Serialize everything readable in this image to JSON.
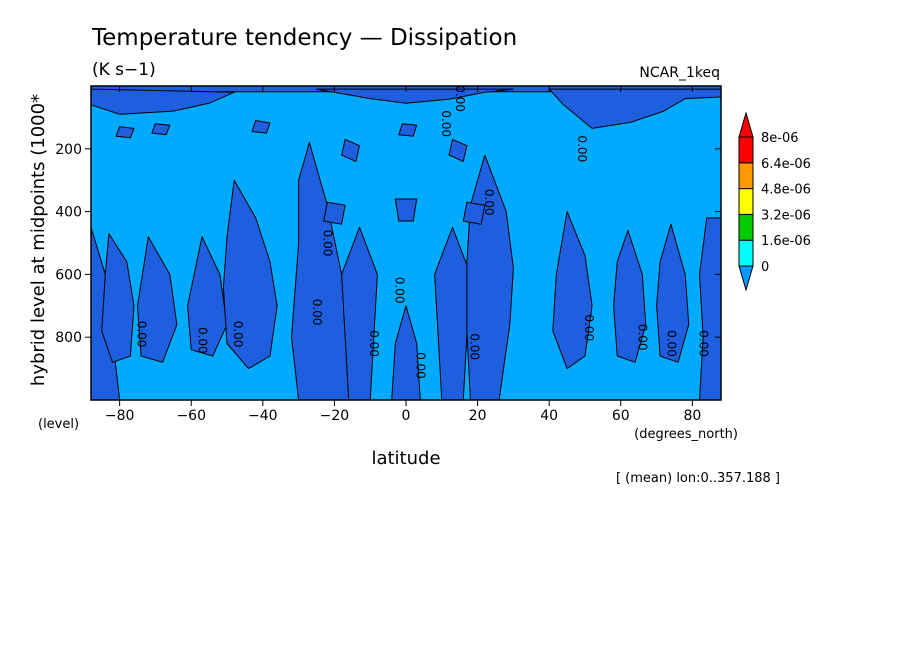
{
  "chart_data": {
    "type": "contour",
    "title": "Temperature tendency — Dissipation",
    "units": "(K s−1)",
    "dataset": "NCAR_1keq",
    "xlabel": "latitude",
    "x_units": "(degrees_north)",
    "ylabel": "hybrid level at midpoints (1000*",
    "y_units": "(level)",
    "footnote": "[ (mean) lon:0..357.188 ]",
    "xlim": [
      -88,
      88
    ],
    "ylim": [
      1000,
      0
    ],
    "x_ticks": [
      -80,
      -60,
      -40,
      -20,
      0,
      20,
      40,
      60,
      80
    ],
    "x_tick_labels": [
      "−80",
      "−60",
      "−40",
      "−20",
      "0",
      "20",
      "40",
      "60",
      "80"
    ],
    "y_ticks": [
      200,
      400,
      600,
      800
    ],
    "y_tick_labels": [
      "200",
      "400",
      "600",
      "800"
    ],
    "colorbar": {
      "levels": [
        "0",
        "1.6e-06",
        "3.2e-06",
        "4.8e-06",
        "6.4e-06",
        "8e-06"
      ],
      "colors": [
        "#0099ff",
        "#00ffff",
        "#00cc00",
        "#ffff00",
        "#ff9900",
        "#ff0000"
      ],
      "below_color": "#1e5fe0"
    },
    "contour_label": "0.00",
    "fill_colors": {
      "positive": "#00aaff",
      "negative": "#1e5fe0"
    },
    "negative_regions": [
      {
        "name": "top-band",
        "pts": [
          [
            -88,
            0
          ],
          [
            88,
            0
          ],
          [
            88,
            18
          ],
          [
            -88,
            18
          ]
        ]
      },
      {
        "name": "top-center",
        "pts": [
          [
            -25,
            10
          ],
          [
            -10,
            40
          ],
          [
            0,
            55
          ],
          [
            12,
            42
          ],
          [
            22,
            20
          ],
          [
            30,
            10
          ]
        ]
      },
      {
        "name": "top-left",
        "pts": [
          [
            -88,
            10
          ],
          [
            -88,
            60
          ],
          [
            -80,
            90
          ],
          [
            -65,
            80
          ],
          [
            -55,
            55
          ],
          [
            -48,
            20
          ]
        ]
      },
      {
        "name": "top-right",
        "pts": [
          [
            40,
            10
          ],
          [
            44,
            60
          ],
          [
            52,
            135
          ],
          [
            63,
            115
          ],
          [
            72,
            80
          ],
          [
            78,
            40
          ],
          [
            88,
            35
          ],
          [
            88,
            10
          ]
        ]
      },
      {
        "name": "left-arm",
        "pts": [
          [
            -88,
            450
          ],
          [
            -88,
            1000
          ],
          [
            -80,
            1000
          ],
          [
            -82,
            800
          ],
          [
            -84,
            600
          ]
        ]
      },
      {
        "name": "col-m82",
        "pts": [
          [
            -83,
            470
          ],
          [
            -78,
            560
          ],
          [
            -76,
            700
          ],
          [
            -77,
            860
          ],
          [
            -82,
            880
          ],
          [
            -85,
            780
          ],
          [
            -84,
            600
          ]
        ]
      },
      {
        "name": "col-m71",
        "pts": [
          [
            -72,
            480
          ],
          [
            -66,
            600
          ],
          [
            -64,
            760
          ],
          [
            -68,
            880
          ],
          [
            -74,
            860
          ],
          [
            -75,
            700
          ]
        ]
      },
      {
        "name": "col-m55",
        "pts": [
          [
            -57,
            480
          ],
          [
            -52,
            600
          ],
          [
            -50,
            760
          ],
          [
            -54,
            860
          ],
          [
            -60,
            840
          ],
          [
            -61,
            700
          ]
        ]
      },
      {
        "name": "col-m46",
        "pts": [
          [
            -48,
            300
          ],
          [
            -42,
            420
          ],
          [
            -38,
            560
          ],
          [
            -36,
            700
          ],
          [
            -38,
            860
          ],
          [
            -44,
            900
          ],
          [
            -50,
            820
          ],
          [
            -51,
            640
          ],
          [
            -50,
            480
          ]
        ]
      },
      {
        "name": "col-m30",
        "pts": [
          [
            -27,
            180
          ],
          [
            -22,
            380
          ],
          [
            -18,
            600
          ],
          [
            -16,
            820
          ],
          [
            -14,
            1000
          ],
          [
            -30,
            1000
          ],
          [
            -32,
            800
          ],
          [
            -30,
            500
          ],
          [
            -30,
            300
          ]
        ]
      },
      {
        "name": "center-tree",
        "pts": [
          [
            -18,
            600
          ],
          [
            -13,
            450
          ],
          [
            -8,
            600
          ],
          [
            -10,
            1000
          ],
          [
            -4,
            1000
          ],
          [
            -3,
            820
          ],
          [
            0,
            700
          ],
          [
            3,
            820
          ],
          [
            4,
            1000
          ],
          [
            10,
            1000
          ],
          [
            8,
            600
          ],
          [
            13,
            450
          ],
          [
            18,
            600
          ],
          [
            16,
            1000
          ],
          [
            -16,
            1000
          ]
        ]
      },
      {
        "name": "col-p24",
        "pts": [
          [
            22,
            220
          ],
          [
            28,
            400
          ],
          [
            30,
            580
          ],
          [
            29,
            760
          ],
          [
            26,
            1000
          ],
          [
            18,
            1000
          ],
          [
            17,
            780
          ],
          [
            17,
            560
          ],
          [
            18,
            380
          ]
        ]
      },
      {
        "name": "col-p45",
        "pts": [
          [
            45,
            400
          ],
          [
            50,
            540
          ],
          [
            52,
            700
          ],
          [
            50,
            860
          ],
          [
            45,
            900
          ],
          [
            41,
            780
          ],
          [
            42,
            600
          ]
        ]
      },
      {
        "name": "col-p62",
        "pts": [
          [
            62,
            460
          ],
          [
            66,
            600
          ],
          [
            67,
            760
          ],
          [
            64,
            880
          ],
          [
            59,
            860
          ],
          [
            58,
            700
          ],
          [
            59,
            560
          ]
        ]
      },
      {
        "name": "col-p74",
        "pts": [
          [
            74,
            440
          ],
          [
            78,
            600
          ],
          [
            79,
            760
          ],
          [
            76,
            880
          ],
          [
            71,
            860
          ],
          [
            70,
            700
          ],
          [
            71,
            560
          ]
        ]
      },
      {
        "name": "right-arm",
        "pts": [
          [
            84,
            420
          ],
          [
            88,
            420
          ],
          [
            88,
            1000
          ],
          [
            82,
            1000
          ],
          [
            83,
            800
          ],
          [
            82,
            600
          ]
        ]
      },
      {
        "name": "blob-a",
        "pts": [
          [
            -3,
            360
          ],
          [
            3,
            360
          ],
          [
            2,
            430
          ],
          [
            -2,
            430
          ]
        ]
      },
      {
        "name": "blob-b",
        "pts": [
          [
            -22,
            370
          ],
          [
            -17,
            380
          ],
          [
            -18,
            440
          ],
          [
            -23,
            430
          ]
        ]
      },
      {
        "name": "blob-c",
        "pts": [
          [
            17,
            370
          ],
          [
            22,
            380
          ],
          [
            21,
            440
          ],
          [
            16,
            430
          ]
        ]
      },
      {
        "name": "blob-d",
        "pts": [
          [
            -17,
            170
          ],
          [
            -13,
            190
          ],
          [
            -14,
            240
          ],
          [
            -18,
            220
          ]
        ]
      },
      {
        "name": "blob-e",
        "pts": [
          [
            13,
            170
          ],
          [
            17,
            190
          ],
          [
            16,
            240
          ],
          [
            12,
            220
          ]
        ]
      },
      {
        "name": "blob-f",
        "pts": [
          [
            -1,
            120
          ],
          [
            3,
            125
          ],
          [
            2,
            160
          ],
          [
            -2,
            155
          ]
        ]
      },
      {
        "name": "blob-g",
        "pts": [
          [
            -70,
            120
          ],
          [
            -66,
            125
          ],
          [
            -67,
            155
          ],
          [
            -71,
            150
          ]
        ]
      },
      {
        "name": "blob-h",
        "pts": [
          [
            -42,
            110
          ],
          [
            -38,
            118
          ],
          [
            -39,
            150
          ],
          [
            -43,
            145
          ]
        ]
      },
      {
        "name": "blob-i",
        "pts": [
          [
            -80,
            130
          ],
          [
            -76,
            135
          ],
          [
            -77,
            165
          ],
          [
            -81,
            160
          ]
        ]
      }
    ],
    "contour_label_positions": [
      [
        -75,
        790
      ],
      [
        -58,
        810
      ],
      [
        -48,
        790
      ],
      [
        -26,
        720
      ],
      [
        -23,
        500
      ],
      [
        -10,
        820
      ],
      [
        -3,
        650
      ],
      [
        3,
        890
      ],
      [
        18,
        830
      ],
      [
        22,
        370
      ],
      [
        10,
        120
      ],
      [
        14,
        40
      ],
      [
        50,
        770
      ],
      [
        65,
        800
      ],
      [
        73,
        820
      ],
      [
        82,
        820
      ],
      [
        48,
        200
      ]
    ]
  }
}
